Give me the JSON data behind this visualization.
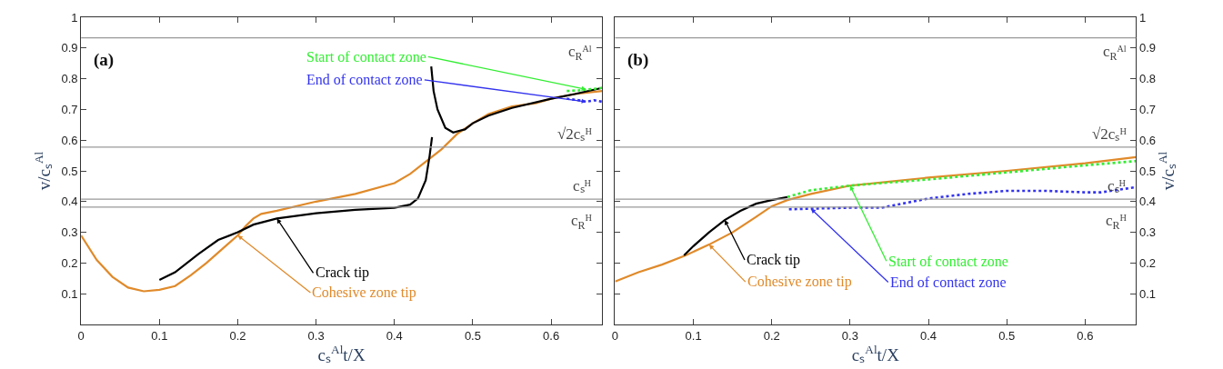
{
  "chart_data": [
    {
      "type": "line",
      "xlabel": "cₛ$^{Al}$t/X",
      "ylabel": "v/cₛ$^{Al}$",
      "xlim": [
        0,
        0.665
      ],
      "ylim": [
        0,
        1
      ],
      "xticks": [
        0,
        0.1,
        0.2,
        0.3,
        0.4,
        0.5,
        0.6
      ],
      "yticks": [
        0.1,
        0.2,
        0.3,
        0.4,
        0.5,
        0.6,
        0.7,
        0.8,
        0.9,
        1
      ],
      "annotations": [
        "(a)"
      ],
      "ref_lines": [
        {
          "axis": "y",
          "value": 0.933,
          "label": "c$_{R}$ᴬˡ",
          "color": "#999999"
        },
        {
          "axis": "y",
          "value": 0.577,
          "label": "√2cₛᴴ",
          "color": "#999999"
        },
        {
          "axis": "y",
          "value": 0.408,
          "label": "cₛᴴ",
          "color": "#999999"
        },
        {
          "axis": "y",
          "value": 0.382,
          "label": "c$_{R}$ᴴ",
          "color": "#999999"
        }
      ],
      "series": [
        {
          "name": "Cohesive zone tip",
          "color": "#e08a2a",
          "line_style": "solid",
          "x": [
            0,
            0.02,
            0.04,
            0.06,
            0.08,
            0.1,
            0.12,
            0.14,
            0.16,
            0.18,
            0.2,
            0.21,
            0.22,
            0.23,
            0.25,
            0.3,
            0.35,
            0.4,
            0.42,
            0.44,
            0.46,
            0.48,
            0.5,
            0.52,
            0.55,
            0.58,
            0.6,
            0.63,
            0.665
          ],
          "values": [
            0.29,
            0.21,
            0.155,
            0.12,
            0.108,
            0.113,
            0.125,
            0.16,
            0.2,
            0.245,
            0.29,
            0.32,
            0.345,
            0.36,
            0.37,
            0.4,
            0.425,
            0.46,
            0.49,
            0.53,
            0.57,
            0.62,
            0.655,
            0.685,
            0.71,
            0.72,
            0.735,
            0.75,
            0.76
          ]
        },
        {
          "name": "Crack tip",
          "color": "#000000",
          "line_style": "solid",
          "x": [
            0.1,
            0.12,
            0.15,
            0.175,
            0.2,
            0.22,
            0.25,
            0.3,
            0.35,
            0.4,
            0.42,
            0.43,
            0.44,
            0.445,
            0.448
          ],
          "values": [
            0.145,
            0.17,
            0.23,
            0.275,
            0.3,
            0.325,
            0.345,
            0.362,
            0.373,
            0.38,
            0.39,
            0.41,
            0.47,
            0.55,
            0.61
          ]
        },
        {
          "color": "#000000",
          "line_style": "solid",
          "x": [
            0.447,
            0.45,
            0.455,
            0.465,
            0.475,
            0.49,
            0.5,
            0.52,
            0.55,
            0.6,
            0.63,
            0.665
          ],
          "values": [
            0.84,
            0.76,
            0.7,
            0.64,
            0.625,
            0.635,
            0.655,
            0.68,
            0.705,
            0.735,
            0.75,
            0.77
          ]
        },
        {
          "name": "Start of contact zone",
          "color": "#33ee33",
          "line_style": "dotted",
          "x": [
            0.62,
            0.635,
            0.645,
            0.655,
            0.665
          ],
          "values": [
            0.76,
            0.762,
            0.765,
            0.767,
            0.77
          ]
        },
        {
          "name": "End of contact zone",
          "color": "#3333ee",
          "line_style": "dotted",
          "x": [
            0.62,
            0.635,
            0.645,
            0.655,
            0.665
          ],
          "values": [
            0.735,
            0.73,
            0.725,
            0.73,
            0.725
          ]
        }
      ]
    },
    {
      "type": "line",
      "xlabel": "cₛ$^{Al}$t/X",
      "y2label": "v/cₛ$^{Al}$",
      "xlim": [
        0,
        0.665
      ],
      "y2lim": [
        0,
        1
      ],
      "xticks": [
        0,
        0.1,
        0.2,
        0.3,
        0.4,
        0.5,
        0.6
      ],
      "y2ticks": [
        0.1,
        0.2,
        0.3,
        0.4,
        0.5,
        0.6,
        0.7,
        0.8,
        0.9,
        1
      ],
      "annotations": [
        "(b)"
      ],
      "ref_lines": [
        {
          "axis": "y2",
          "value": 0.933,
          "label": "c$_{R}$ᴬˡ",
          "color": "#999999"
        },
        {
          "axis": "y2",
          "value": 0.577,
          "label": "√2cₛᴴ",
          "color": "#999999"
        },
        {
          "axis": "y2",
          "value": 0.408,
          "label": "cₛᴴ",
          "color": "#999999"
        },
        {
          "axis": "y2",
          "value": 0.382,
          "label": "c$_{R}$ᴴ",
          "color": "#999999"
        }
      ],
      "series": [
        {
          "name": "Cohesive zone tip",
          "color": "#e08a2a",
          "line_style": "solid",
          "axis": "y2",
          "x": [
            0,
            0.03,
            0.06,
            0.09,
            0.12,
            0.15,
            0.18,
            0.2,
            0.22,
            0.25,
            0.3,
            0.35,
            0.4,
            0.5,
            0.6,
            0.665
          ],
          "values": [
            0.14,
            0.17,
            0.195,
            0.225,
            0.26,
            0.3,
            0.35,
            0.385,
            0.405,
            0.425,
            0.452,
            0.465,
            0.478,
            0.5,
            0.525,
            0.545
          ]
        },
        {
          "name": "Crack tip",
          "color": "#000000",
          "line_style": "solid",
          "axis": "y2",
          "x": [
            0.088,
            0.1,
            0.12,
            0.14,
            0.16,
            0.18,
            0.2,
            0.22
          ],
          "values": [
            0.225,
            0.255,
            0.3,
            0.34,
            0.37,
            0.393,
            0.405,
            0.415
          ]
        },
        {
          "name": "Start of contact zone",
          "color": "#33ee33",
          "line_style": "dotted",
          "axis": "y2",
          "x": [
            0.22,
            0.25,
            0.3,
            0.4,
            0.5,
            0.6,
            0.665
          ],
          "values": [
            0.415,
            0.437,
            0.452,
            0.472,
            0.495,
            0.518,
            0.532
          ]
        },
        {
          "name": "End of contact zone",
          "color": "#3333ee",
          "line_style": "dotted",
          "axis": "y2",
          "x": [
            0.222,
            0.25,
            0.3,
            0.34,
            0.37,
            0.4,
            0.45,
            0.5,
            0.55,
            0.6,
            0.62,
            0.665
          ],
          "values": [
            0.375,
            0.377,
            0.38,
            0.38,
            0.395,
            0.41,
            0.425,
            0.435,
            0.435,
            0.43,
            0.43,
            0.447
          ]
        }
      ]
    }
  ]
}
